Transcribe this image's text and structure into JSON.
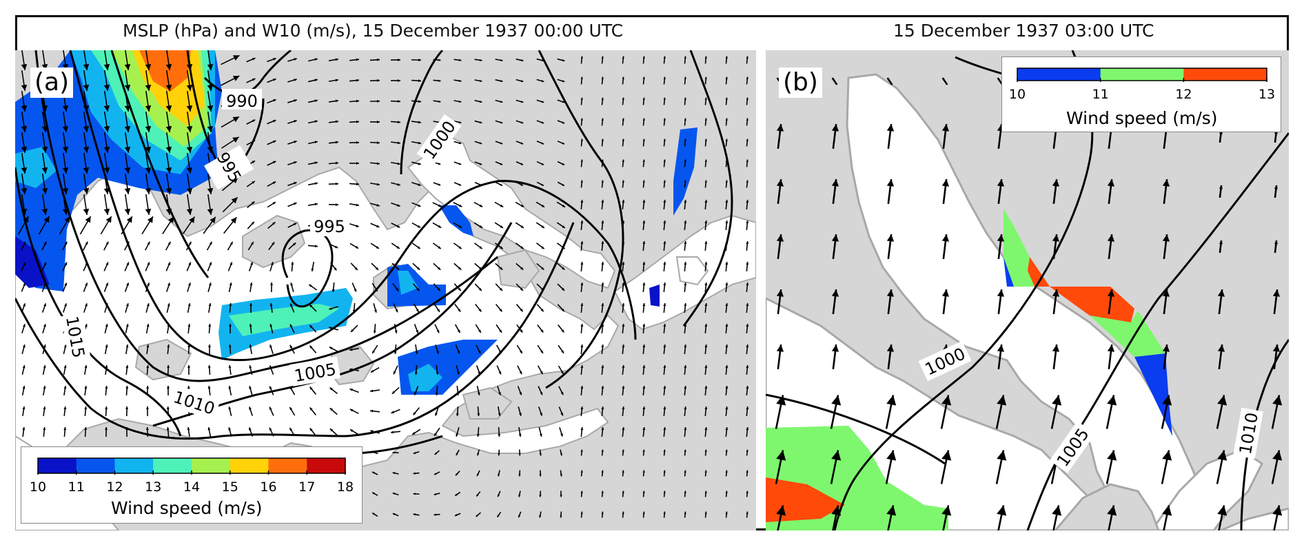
{
  "panel_a": {
    "title": "MSLP (hPa) and W10 (m/s), 15 December 1937 00:00 UTC",
    "label": "(a)",
    "isobar_labels": [
      "990",
      "995",
      "1000",
      "995",
      "1005",
      "1010",
      "1015"
    ],
    "legend": {
      "title": "Wind speed (m/s)",
      "ticks": [
        "10",
        "11",
        "12",
        "13",
        "14",
        "15",
        "16",
        "17",
        "18"
      ],
      "colors": [
        "#0a12c8",
        "#0556ee",
        "#12b4f0",
        "#4ef2b8",
        "#a6f050",
        "#ffd20a",
        "#ff6e0a",
        "#c80a0a"
      ]
    }
  },
  "panel_b": {
    "title": "15 December 1937 03:00 UTC",
    "label": "(b)",
    "isobar_labels": [
      "1000",
      "1005",
      "1010"
    ],
    "legend": {
      "title": "Wind speed (m/s)",
      "ticks": [
        "10",
        "11",
        "12",
        "13"
      ],
      "colors": [
        "#0a3cf0",
        "#7ef76e",
        "#ff4a0a"
      ]
    }
  },
  "colors": {
    "land": "#d6d6d6",
    "sea": "#ffffff",
    "coast": "#a8a8a8",
    "isobar": "#000000",
    "arrow": "#000000"
  }
}
